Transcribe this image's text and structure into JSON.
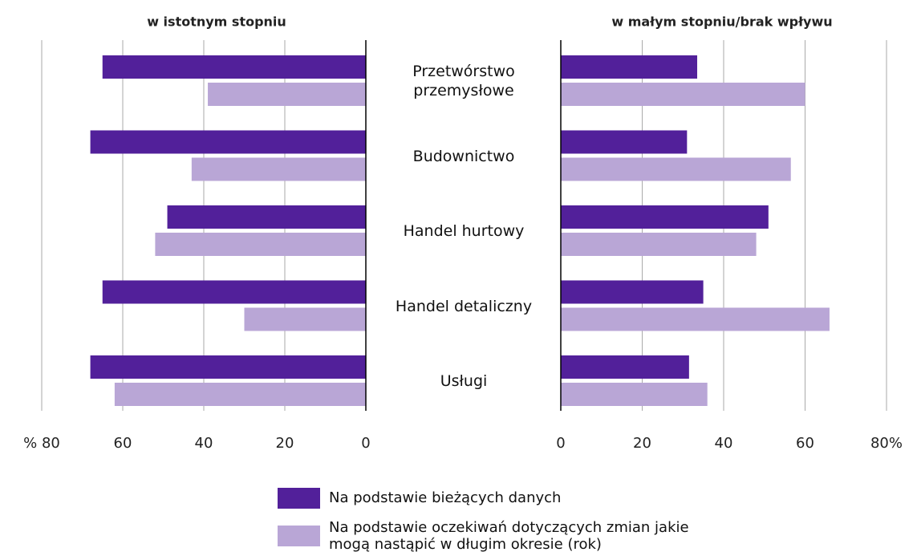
{
  "chart_data": [
    {
      "type": "bar",
      "orientation": "horizontal",
      "reversed": true,
      "title": "w istotnym stopniu",
      "categories": [
        "Przetwórstwo przemysłowe",
        "Budownictwo",
        "Handel hurtowy",
        "Handel detaliczny",
        "Usługi"
      ],
      "series": [
        {
          "name": "Na podstawie bieżących danych",
          "color": "#52209a",
          "values": [
            65,
            68,
            49,
            65,
            68
          ]
        },
        {
          "name": "Na podstawie oczekiwań dotyczących zmian jakie mogą nastąpić w długim okresie (rok)",
          "color": "#b9a6d6",
          "values": [
            39,
            43,
            52,
            30,
            62
          ]
        }
      ],
      "xlim": [
        0,
        80
      ],
      "xticks": [
        0,
        20,
        40,
        60,
        {
          "value": 80,
          "label": "% 80"
        }
      ],
      "grid": true
    },
    {
      "type": "bar",
      "orientation": "horizontal",
      "reversed": false,
      "title": "w małym stopniu/brak wpływu",
      "series": [
        {
          "color": "#52209a",
          "values": [
            33.5,
            31,
            51,
            35,
            31.5
          ]
        },
        {
          "color": "#b9a6d6",
          "values": [
            60,
            56.5,
            48,
            66,
            36
          ]
        }
      ],
      "xlim": [
        0,
        80
      ],
      "xticks": [
        0,
        20,
        40,
        60,
        {
          "value": 80,
          "label": "80%"
        }
      ],
      "grid": true
    }
  ]
}
